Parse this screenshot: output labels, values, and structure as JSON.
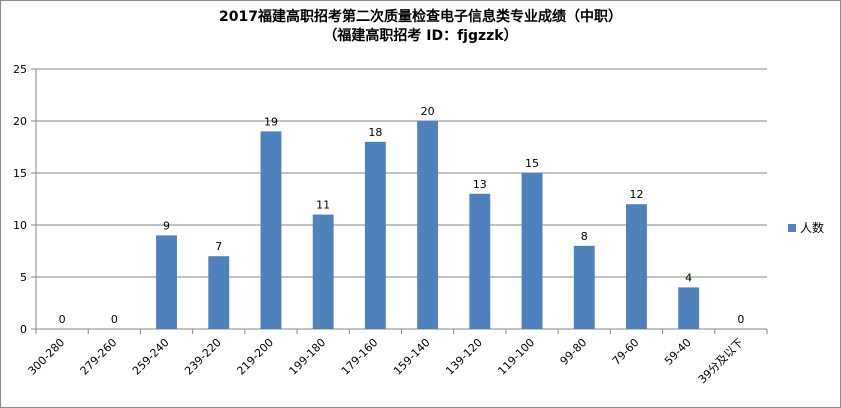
{
  "chart_data": {
    "type": "bar",
    "title": "2017福建高职招考第二次质量检查电子信息类专业成绩（中职）",
    "subtitle": "（福建高职招考  ID：fjgzzk）",
    "xlabel": "",
    "ylabel": "",
    "categories": [
      "300-280",
      "279-260",
      "259-240",
      "239-220",
      "219-200",
      "199-180",
      "179-160",
      "159-140",
      "139-120",
      "119-100",
      "99-80",
      "79-60",
      "59-40",
      "39分及以下"
    ],
    "series": [
      {
        "name": "人数",
        "values": [
          0,
          0,
          9,
          7,
          19,
          11,
          18,
          20,
          13,
          15,
          8,
          12,
          4,
          0
        ]
      }
    ],
    "ylim": [
      0,
      25
    ],
    "yticks": [
      0,
      5,
      10,
      15,
      20,
      25
    ],
    "grid": true,
    "legend": "right",
    "bar_color": "#4f81bd"
  }
}
